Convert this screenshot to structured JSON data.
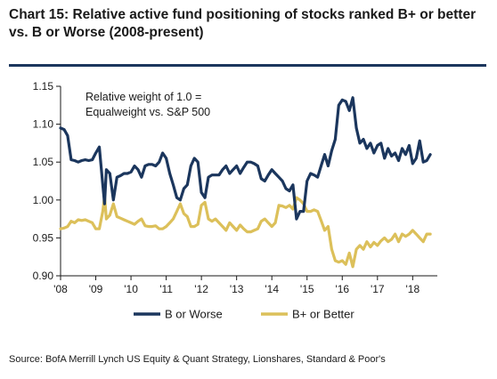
{
  "header": {
    "title_line1": "Chart 15: Relative active fund positioning of stocks ranked B+ or better",
    "title_line2": "vs. B or Worse (2008-present)"
  },
  "annotation": {
    "line1": "Relative weight of 1.0 =",
    "line2": "Equalweight vs. S&P 500"
  },
  "source": "Source: BofA Merrill Lynch US Equity & Quant Strategy, Lionshares, Standard & Poor's",
  "colors": {
    "b_or_worse": "#1b365d",
    "b_plus_or_better": "#dcc05a",
    "title_rule": "#1b365d"
  },
  "chart_data": {
    "type": "line",
    "x_tick_labels": [
      "'08",
      "'09",
      "'10",
      "'11",
      "'12",
      "'13",
      "'14",
      "'15",
      "'16",
      "'17",
      "'18"
    ],
    "xlim": [
      2008.0,
      2018.7
    ],
    "ylim": [
      0.9,
      1.15
    ],
    "y_ticks": [
      0.9,
      0.95,
      1.0,
      1.05,
      1.1,
      1.15
    ],
    "y_tick_labels": [
      "0.90",
      "0.95",
      "1.00",
      "1.05",
      "1.10",
      "1.15"
    ],
    "legend_position": "bottom",
    "series": [
      {
        "name": "B or Worse",
        "color": "#1b365d",
        "x": [
          2008.0,
          2008.1,
          2008.2,
          2008.3,
          2008.4,
          2008.5,
          2008.6,
          2008.7,
          2008.8,
          2008.9,
          2009.0,
          2009.1,
          2009.2,
          2009.25,
          2009.3,
          2009.4,
          2009.5,
          2009.6,
          2009.7,
          2009.8,
          2009.9,
          2010.0,
          2010.1,
          2010.2,
          2010.3,
          2010.4,
          2010.5,
          2010.6,
          2010.7,
          2010.8,
          2010.9,
          2011.0,
          2011.1,
          2011.2,
          2011.3,
          2011.4,
          2011.5,
          2011.6,
          2011.7,
          2011.8,
          2011.9,
          2012.0,
          2012.1,
          2012.2,
          2012.3,
          2012.4,
          2012.5,
          2012.6,
          2012.7,
          2012.8,
          2012.9,
          2013.0,
          2013.1,
          2013.2,
          2013.3,
          2013.4,
          2013.5,
          2013.6,
          2013.7,
          2013.8,
          2013.9,
          2014.0,
          2014.1,
          2014.2,
          2014.3,
          2014.4,
          2014.5,
          2014.6,
          2014.7,
          2014.8,
          2014.9,
          2015.0,
          2015.1,
          2015.2,
          2015.3,
          2015.4,
          2015.5,
          2015.6,
          2015.7,
          2015.8,
          2015.9,
          2016.0,
          2016.1,
          2016.2,
          2016.3,
          2016.4,
          2016.5,
          2016.6,
          2016.7,
          2016.8,
          2016.9,
          2017.0,
          2017.1,
          2017.2,
          2017.3,
          2017.4,
          2017.5,
          2017.6,
          2017.7,
          2017.8,
          2017.9,
          2018.0,
          2018.1,
          2018.2,
          2018.3,
          2018.4,
          2018.5
        ],
        "y": [
          1.095,
          1.093,
          1.085,
          1.053,
          1.052,
          1.05,
          1.052,
          1.053,
          1.052,
          1.053,
          1.062,
          1.07,
          1.02,
          0.995,
          1.04,
          1.035,
          1.0,
          1.03,
          1.032,
          1.035,
          1.035,
          1.037,
          1.045,
          1.04,
          1.03,
          1.045,
          1.047,
          1.047,
          1.045,
          1.05,
          1.062,
          1.055,
          1.035,
          1.02,
          1.003,
          1.0,
          1.015,
          1.02,
          1.045,
          1.055,
          1.05,
          1.01,
          1.003,
          1.03,
          1.033,
          1.033,
          1.033,
          1.04,
          1.045,
          1.035,
          1.04,
          1.045,
          1.035,
          1.043,
          1.05,
          1.05,
          1.048,
          1.045,
          1.028,
          1.025,
          1.033,
          1.04,
          1.035,
          1.03,
          1.025,
          1.015,
          1.012,
          1.02,
          0.975,
          0.985,
          0.985,
          1.025,
          1.035,
          1.033,
          1.03,
          1.045,
          1.06,
          1.045,
          1.065,
          1.08,
          1.125,
          1.132,
          1.13,
          1.118,
          1.135,
          1.095,
          1.075,
          1.08,
          1.068,
          1.075,
          1.062,
          1.072,
          1.075,
          1.055,
          1.068,
          1.058,
          1.062,
          1.052,
          1.068,
          1.06,
          1.072,
          1.048,
          1.055,
          1.078,
          1.05,
          1.052,
          1.06
        ]
      },
      {
        "name": "B+ or Better",
        "color": "#dcc05a",
        "x": [
          2008.0,
          2008.1,
          2008.2,
          2008.3,
          2008.4,
          2008.5,
          2008.6,
          2008.7,
          2008.8,
          2008.9,
          2009.0,
          2009.1,
          2009.2,
          2009.25,
          2009.3,
          2009.4,
          2009.5,
          2009.6,
          2009.7,
          2009.8,
          2009.9,
          2010.0,
          2010.1,
          2010.2,
          2010.3,
          2010.4,
          2010.5,
          2010.6,
          2010.7,
          2010.8,
          2010.9,
          2011.0,
          2011.1,
          2011.2,
          2011.3,
          2011.4,
          2011.5,
          2011.6,
          2011.7,
          2011.8,
          2011.9,
          2012.0,
          2012.1,
          2012.2,
          2012.3,
          2012.4,
          2012.5,
          2012.6,
          2012.7,
          2012.8,
          2012.9,
          2013.0,
          2013.1,
          2013.2,
          2013.3,
          2013.4,
          2013.5,
          2013.6,
          2013.7,
          2013.8,
          2013.9,
          2014.0,
          2014.1,
          2014.2,
          2014.3,
          2014.4,
          2014.5,
          2014.6,
          2014.7,
          2014.8,
          2014.9,
          2015.0,
          2015.1,
          2015.2,
          2015.3,
          2015.4,
          2015.5,
          2015.6,
          2015.7,
          2015.8,
          2015.9,
          2016.0,
          2016.1,
          2016.2,
          2016.3,
          2016.4,
          2016.5,
          2016.6,
          2016.7,
          2016.8,
          2016.9,
          2017.0,
          2017.1,
          2017.2,
          2017.3,
          2017.4,
          2017.5,
          2017.6,
          2017.7,
          2017.8,
          2017.9,
          2018.0,
          2018.1,
          2018.2,
          2018.3,
          2018.4,
          2018.5
        ],
        "y": [
          0.962,
          0.963,
          0.965,
          0.972,
          0.97,
          0.974,
          0.973,
          0.974,
          0.972,
          0.97,
          0.962,
          0.962,
          0.985,
          1.005,
          0.975,
          0.98,
          0.995,
          0.978,
          0.976,
          0.974,
          0.972,
          0.97,
          0.968,
          0.972,
          0.975,
          0.966,
          0.965,
          0.965,
          0.966,
          0.962,
          0.962,
          0.965,
          0.97,
          0.975,
          0.985,
          0.995,
          0.982,
          0.978,
          0.965,
          0.965,
          0.968,
          0.993,
          0.997,
          0.975,
          0.972,
          0.975,
          0.97,
          0.965,
          0.96,
          0.97,
          0.965,
          0.96,
          0.967,
          0.962,
          0.958,
          0.958,
          0.96,
          0.962,
          0.972,
          0.975,
          0.97,
          0.965,
          0.97,
          0.993,
          0.992,
          0.99,
          0.993,
          0.988,
          1.003,
          1.0,
          0.995,
          0.985,
          0.985,
          0.987,
          0.985,
          0.973,
          0.96,
          0.965,
          0.935,
          0.92,
          0.918,
          0.92,
          0.915,
          0.93,
          0.912,
          0.935,
          0.94,
          0.935,
          0.945,
          0.938,
          0.944,
          0.94,
          0.946,
          0.95,
          0.945,
          0.948,
          0.955,
          0.945,
          0.955,
          0.952,
          0.955,
          0.96,
          0.955,
          0.95,
          0.945,
          0.955,
          0.955
        ]
      }
    ]
  }
}
